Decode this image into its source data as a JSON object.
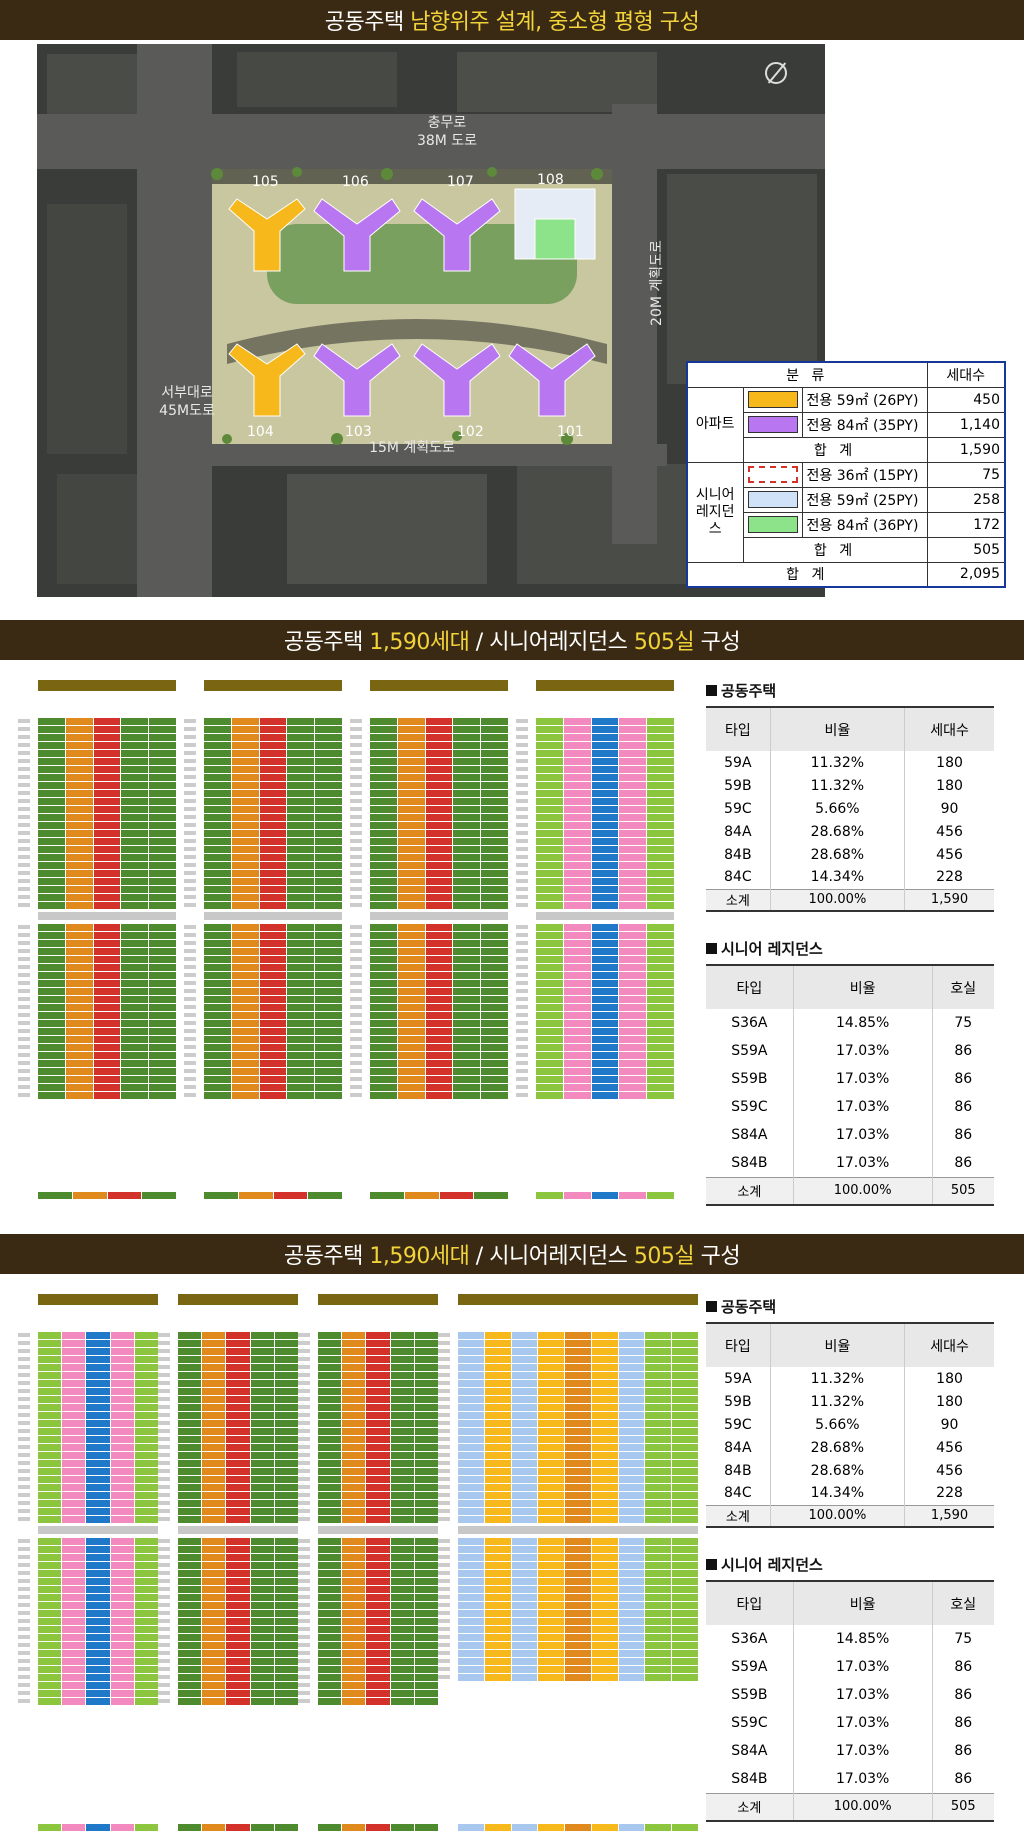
{
  "section1": {
    "banner": {
      "prefix": "공동주택 ",
      "highlight": "남향위주 설계, 중소형 평형 구성"
    },
    "roads": {
      "north": "충무로\n38M 도로",
      "west": "서부대로\n45M도로",
      "south": "15M 계획도로",
      "east": "20M 계획도로"
    },
    "buildings": [
      "105",
      "106",
      "107",
      "108",
      "104",
      "103",
      "102",
      "101"
    ],
    "summary": {
      "header_category": "분   류",
      "header_count": "세대수",
      "group_apartment": "아파트",
      "group_senior": "시니어\n레지던스",
      "rows_apartment": [
        {
          "label": "전용  59㎡ (26PY)",
          "count": "450",
          "color": "#f6b81a"
        },
        {
          "label": "전용  84㎡ (35PY)",
          "count": "1,140",
          "color": "#b877f0"
        }
      ],
      "subtotal_apartment": {
        "label": "합   계",
        "count": "1,590"
      },
      "rows_senior": [
        {
          "label": "전용  36㎡ (15PY)",
          "count": "75",
          "color": "#ffffff"
        },
        {
          "label": "전용  59㎡ (25PY)",
          "count": "258",
          "color": "#cfe2f8"
        },
        {
          "label": "전용  84㎡ (36PY)",
          "count": "172",
          "color": "#8de38a"
        }
      ],
      "subtotal_senior": {
        "label": "합   계",
        "count": "505"
      },
      "total": {
        "label": "합   계",
        "count": "2,095"
      }
    }
  },
  "section2": {
    "banner": {
      "p1": "공동주택 ",
      "h1": "1,590세대",
      "p2": " / 시니어레지던스 ",
      "h2": "505실",
      "p3": " 구성"
    },
    "apt_title": "공동주택",
    "apt_headers": [
      "타입",
      "비율",
      "세대수"
    ],
    "apt_rows": [
      [
        "59A",
        "11.32%",
        "180"
      ],
      [
        "59B",
        "11.32%",
        "180"
      ],
      [
        "59C",
        "5.66%",
        "90"
      ],
      [
        "84A",
        "28.68%",
        "456"
      ],
      [
        "84B",
        "28.68%",
        "456"
      ],
      [
        "84C",
        "14.34%",
        "228"
      ]
    ],
    "apt_total": [
      "소계",
      "100.00%",
      "1,590"
    ],
    "sr_title": "시니어 레지던스",
    "sr_headers": [
      "타입",
      "비율",
      "호실"
    ],
    "sr_rows": [
      [
        "S36A",
        "14.85%",
        "75"
      ],
      [
        "S59A",
        "17.03%",
        "86"
      ],
      [
        "S59B",
        "17.03%",
        "86"
      ],
      [
        "S59C",
        "17.03%",
        "86"
      ],
      [
        "S84A",
        "17.03%",
        "86"
      ],
      [
        "S84B",
        "17.03%",
        "86"
      ]
    ],
    "sr_total": [
      "소계",
      "100.00%",
      "505"
    ]
  },
  "section3": {
    "banner": {
      "p1": "공동주택 ",
      "h1": "1,590세대",
      "p2": " / 시니어레지던스 ",
      "h2": "505실",
      "p3": " 구성"
    },
    "apt_title": "공동주택",
    "apt_headers": [
      "타입",
      "비율",
      "세대수"
    ],
    "apt_rows": [
      [
        "59A",
        "11.32%",
        "180"
      ],
      [
        "59B",
        "11.32%",
        "180"
      ],
      [
        "59C",
        "5.66%",
        "90"
      ],
      [
        "84A",
        "28.68%",
        "456"
      ],
      [
        "84B",
        "28.68%",
        "456"
      ],
      [
        "84C",
        "14.34%",
        "228"
      ]
    ],
    "apt_total": [
      "소계",
      "100.00%",
      "1,590"
    ],
    "sr_title": "시니어 레지던스",
    "sr_headers": [
      "타입",
      "비율",
      "호실"
    ],
    "sr_rows": [
      [
        "S36A",
        "14.85%",
        "75"
      ],
      [
        "S59A",
        "17.03%",
        "86"
      ],
      [
        "S59B",
        "17.03%",
        "86"
      ],
      [
        "S59C",
        "17.03%",
        "86"
      ],
      [
        "S84A",
        "17.03%",
        "86"
      ],
      [
        "S84B",
        "17.03%",
        "86"
      ]
    ],
    "sr_total": [
      "소계",
      "100.00%",
      "505"
    ]
  },
  "colors": {
    "banner_bg": "#3a2a14",
    "highlight": "#f2d33a",
    "green_dark": "#4e8a2e",
    "green_light": "#8cc63f",
    "orange": "#e08a1e",
    "red": "#d2322a",
    "pink": "#f28ac0",
    "blue": "#1f78c8",
    "light_blue": "#a8c8f0",
    "yellow": "#f6b81a"
  }
}
